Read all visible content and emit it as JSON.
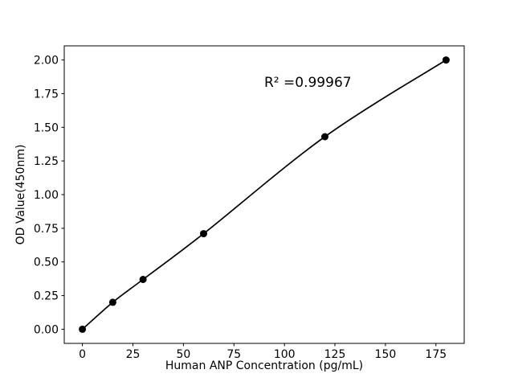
{
  "figure": {
    "background": "#ffffff",
    "foreground": "#000000"
  },
  "chart_data": {
    "type": "line",
    "title": "",
    "xlabel": "Human ANP Concentration (pg/mL)",
    "ylabel": "OD Value(450nm)",
    "x": [
      0,
      15,
      30,
      60,
      120,
      180
    ],
    "y": [
      0.0,
      0.2,
      0.37,
      0.71,
      1.43,
      2.0
    ],
    "xlim": [
      -9,
      189
    ],
    "ylim": [
      -0.105,
      2.105
    ],
    "xticks": [
      0,
      25,
      50,
      75,
      100,
      125,
      150,
      175
    ],
    "xtick_labels": [
      "0",
      "25",
      "50",
      "75",
      "100",
      "125",
      "150",
      "175"
    ],
    "yticks": [
      0,
      0.25,
      0.5,
      0.75,
      1.0,
      1.25,
      1.5,
      1.75,
      2.0
    ],
    "ytick_labels": [
      "0.00",
      "0.25",
      "0.50",
      "0.75",
      "1.00",
      "1.25",
      "1.50",
      "1.75",
      "2.00"
    ],
    "annotation": {
      "text": "R² =0.99967",
      "x": 90,
      "y": 1.8
    },
    "line_color": "#000000",
    "marker_color": "#000000",
    "marker": "o",
    "grid": false,
    "legend": null
  }
}
